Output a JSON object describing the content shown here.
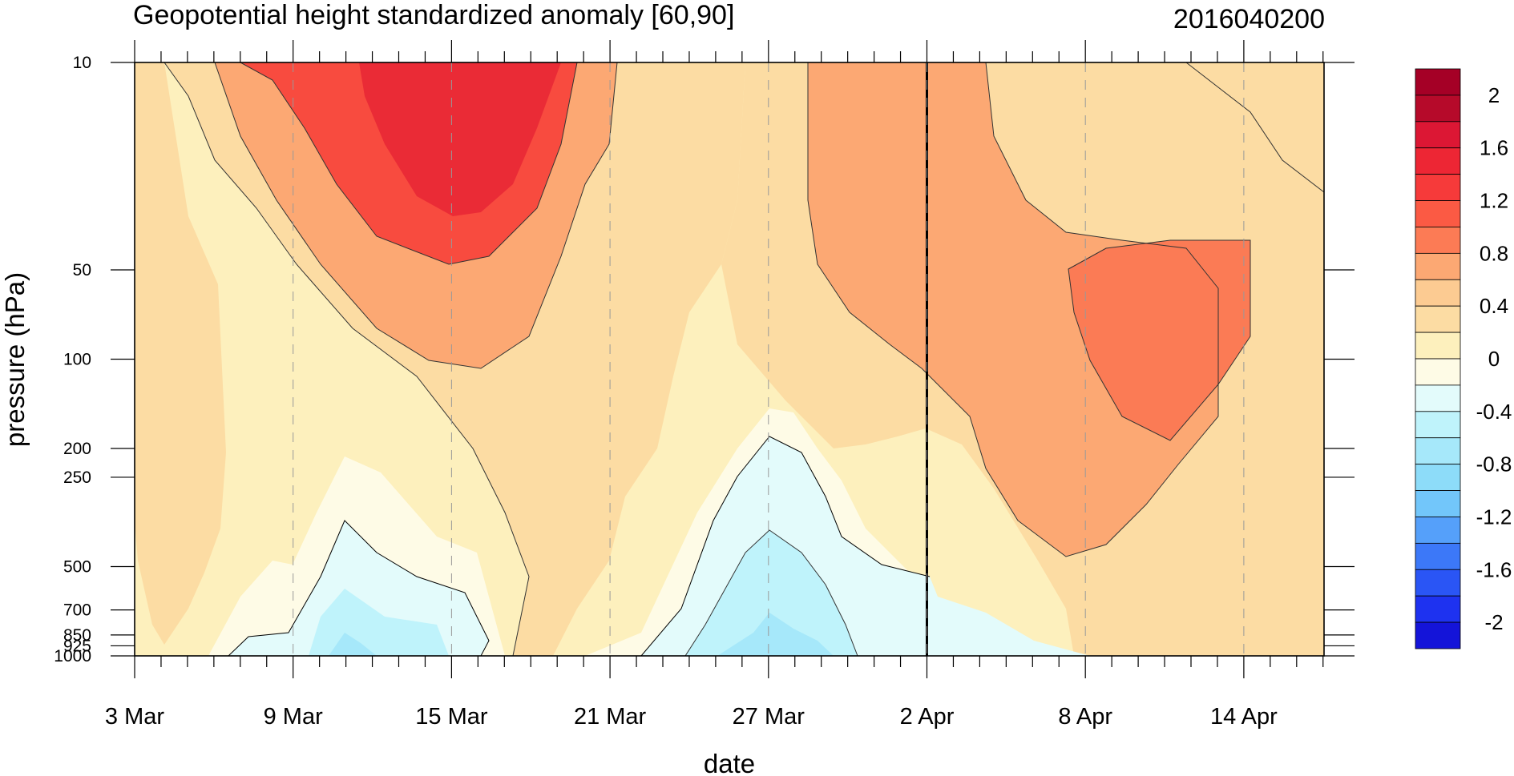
{
  "chart_data": {
    "type": "heatmap",
    "title": "Geopotential height standardized anomaly [60,90]",
    "subtitle": "2016040200",
    "xlabel": "date",
    "ylabel": "pressure (hPa)",
    "x_ticks": [
      "3 Mar",
      "9 Mar",
      "15 Mar",
      "21 Mar",
      "27 Mar",
      "2 Apr",
      "8 Apr",
      "14 Apr"
    ],
    "x_range": [
      "3 Mar",
      "17 Apr"
    ],
    "y_scale": "log",
    "y_reversed": true,
    "y_ticks": [
      10,
      50,
      100,
      200,
      250,
      500,
      700,
      850,
      925,
      1000
    ],
    "ylim": [
      1000,
      10
    ],
    "reference_date": "2 Apr",
    "colorbar": {
      "levels": [
        -2.2,
        -2.0,
        -1.8,
        -1.6,
        -1.4,
        -1.2,
        -1.0,
        -0.8,
        -0.6,
        -0.4,
        -0.2,
        0.0,
        0.2,
        0.4,
        0.6,
        0.8,
        1.0,
        1.2,
        1.4,
        1.6,
        1.8,
        2.0,
        2.2
      ],
      "colors": [
        "#1414d9",
        "#1e32f0",
        "#2a55f5",
        "#3c78f8",
        "#55a0fa",
        "#72c6fa",
        "#8ddcf9",
        "#a6e8fa",
        "#bff3fb",
        "#e3fbfb",
        "#fefbe6",
        "#fdf0bd",
        "#fcdca3",
        "#fccb92",
        "#fca873",
        "#fc7b55",
        "#fb5a44",
        "#f63a3a",
        "#ed2634",
        "#dc1734",
        "#b60a2a",
        "#a50026"
      ],
      "tick_labels": [
        "2",
        "1.6",
        "1.2",
        "0.8",
        "0.4",
        "0",
        "-0.4",
        "-0.8",
        "-1.2",
        "-1.6",
        "-2"
      ]
    },
    "regions": [
      {
        "value_range": [
          1.6,
          1.8
        ],
        "description": "maximum positive anomaly near 10 hPa around 14-17 Mar"
      },
      {
        "value_range": [
          1.0,
          1.2
        ],
        "description": "positive anomaly 50-200 hPa around 9-12 Apr"
      },
      {
        "value_range": [
          -0.8,
          -0.6
        ],
        "description": "negative anomaly near 925-1000 hPa around 25-29 Mar"
      }
    ]
  }
}
